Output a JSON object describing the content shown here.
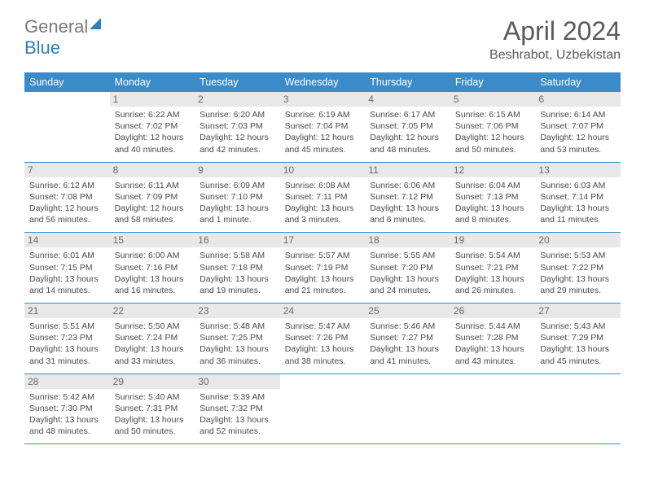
{
  "logo": {
    "text_general": "General",
    "text_blue": "Blue"
  },
  "title": "April 2024",
  "location": "Beshrabot, Uzbekistan",
  "day_headers": [
    "Sunday",
    "Monday",
    "Tuesday",
    "Wednesday",
    "Thursday",
    "Friday",
    "Saturday"
  ],
  "colors": {
    "header_bg": "#3b8bc9",
    "header_text": "#ffffff",
    "cell_num_bg": "#e8e8e8",
    "text": "#4a4a4a",
    "rule": "#3b8bc9",
    "logo_blue": "#2f7fbf"
  },
  "weeks": [
    [
      {
        "day": "",
        "lines": []
      },
      {
        "day": "1",
        "lines": [
          "Sunrise: 6:22 AM",
          "Sunset: 7:02 PM",
          "Daylight: 12 hours",
          "and 40 minutes."
        ]
      },
      {
        "day": "2",
        "lines": [
          "Sunrise: 6:20 AM",
          "Sunset: 7:03 PM",
          "Daylight: 12 hours",
          "and 42 minutes."
        ]
      },
      {
        "day": "3",
        "lines": [
          "Sunrise: 6:19 AM",
          "Sunset: 7:04 PM",
          "Daylight: 12 hours",
          "and 45 minutes."
        ]
      },
      {
        "day": "4",
        "lines": [
          "Sunrise: 6:17 AM",
          "Sunset: 7:05 PM",
          "Daylight: 12 hours",
          "and 48 minutes."
        ]
      },
      {
        "day": "5",
        "lines": [
          "Sunrise: 6:15 AM",
          "Sunset: 7:06 PM",
          "Daylight: 12 hours",
          "and 50 minutes."
        ]
      },
      {
        "day": "6",
        "lines": [
          "Sunrise: 6:14 AM",
          "Sunset: 7:07 PM",
          "Daylight: 12 hours",
          "and 53 minutes."
        ]
      }
    ],
    [
      {
        "day": "7",
        "lines": [
          "Sunrise: 6:12 AM",
          "Sunset: 7:08 PM",
          "Daylight: 12 hours",
          "and 56 minutes."
        ]
      },
      {
        "day": "8",
        "lines": [
          "Sunrise: 6:11 AM",
          "Sunset: 7:09 PM",
          "Daylight: 12 hours",
          "and 58 minutes."
        ]
      },
      {
        "day": "9",
        "lines": [
          "Sunrise: 6:09 AM",
          "Sunset: 7:10 PM",
          "Daylight: 13 hours",
          "and 1 minute."
        ]
      },
      {
        "day": "10",
        "lines": [
          "Sunrise: 6:08 AM",
          "Sunset: 7:11 PM",
          "Daylight: 13 hours",
          "and 3 minutes."
        ]
      },
      {
        "day": "11",
        "lines": [
          "Sunrise: 6:06 AM",
          "Sunset: 7:12 PM",
          "Daylight: 13 hours",
          "and 6 minutes."
        ]
      },
      {
        "day": "12",
        "lines": [
          "Sunrise: 6:04 AM",
          "Sunset: 7:13 PM",
          "Daylight: 13 hours",
          "and 8 minutes."
        ]
      },
      {
        "day": "13",
        "lines": [
          "Sunrise: 6:03 AM",
          "Sunset: 7:14 PM",
          "Daylight: 13 hours",
          "and 11 minutes."
        ]
      }
    ],
    [
      {
        "day": "14",
        "lines": [
          "Sunrise: 6:01 AM",
          "Sunset: 7:15 PM",
          "Daylight: 13 hours",
          "and 14 minutes."
        ]
      },
      {
        "day": "15",
        "lines": [
          "Sunrise: 6:00 AM",
          "Sunset: 7:16 PM",
          "Daylight: 13 hours",
          "and 16 minutes."
        ]
      },
      {
        "day": "16",
        "lines": [
          "Sunrise: 5:58 AM",
          "Sunset: 7:18 PM",
          "Daylight: 13 hours",
          "and 19 minutes."
        ]
      },
      {
        "day": "17",
        "lines": [
          "Sunrise: 5:57 AM",
          "Sunset: 7:19 PM",
          "Daylight: 13 hours",
          "and 21 minutes."
        ]
      },
      {
        "day": "18",
        "lines": [
          "Sunrise: 5:55 AM",
          "Sunset: 7:20 PM",
          "Daylight: 13 hours",
          "and 24 minutes."
        ]
      },
      {
        "day": "19",
        "lines": [
          "Sunrise: 5:54 AM",
          "Sunset: 7:21 PM",
          "Daylight: 13 hours",
          "and 26 minutes."
        ]
      },
      {
        "day": "20",
        "lines": [
          "Sunrise: 5:53 AM",
          "Sunset: 7:22 PM",
          "Daylight: 13 hours",
          "and 29 minutes."
        ]
      }
    ],
    [
      {
        "day": "21",
        "lines": [
          "Sunrise: 5:51 AM",
          "Sunset: 7:23 PM",
          "Daylight: 13 hours",
          "and 31 minutes."
        ]
      },
      {
        "day": "22",
        "lines": [
          "Sunrise: 5:50 AM",
          "Sunset: 7:24 PM",
          "Daylight: 13 hours",
          "and 33 minutes."
        ]
      },
      {
        "day": "23",
        "lines": [
          "Sunrise: 5:48 AM",
          "Sunset: 7:25 PM",
          "Daylight: 13 hours",
          "and 36 minutes."
        ]
      },
      {
        "day": "24",
        "lines": [
          "Sunrise: 5:47 AM",
          "Sunset: 7:26 PM",
          "Daylight: 13 hours",
          "and 38 minutes."
        ]
      },
      {
        "day": "25",
        "lines": [
          "Sunrise: 5:46 AM",
          "Sunset: 7:27 PM",
          "Daylight: 13 hours",
          "and 41 minutes."
        ]
      },
      {
        "day": "26",
        "lines": [
          "Sunrise: 5:44 AM",
          "Sunset: 7:28 PM",
          "Daylight: 13 hours",
          "and 43 minutes."
        ]
      },
      {
        "day": "27",
        "lines": [
          "Sunrise: 5:43 AM",
          "Sunset: 7:29 PM",
          "Daylight: 13 hours",
          "and 45 minutes."
        ]
      }
    ],
    [
      {
        "day": "28",
        "lines": [
          "Sunrise: 5:42 AM",
          "Sunset: 7:30 PM",
          "Daylight: 13 hours",
          "and 48 minutes."
        ]
      },
      {
        "day": "29",
        "lines": [
          "Sunrise: 5:40 AM",
          "Sunset: 7:31 PM",
          "Daylight: 13 hours",
          "and 50 minutes."
        ]
      },
      {
        "day": "30",
        "lines": [
          "Sunrise: 5:39 AM",
          "Sunset: 7:32 PM",
          "Daylight: 13 hours",
          "and 52 minutes."
        ]
      },
      {
        "day": "",
        "lines": []
      },
      {
        "day": "",
        "lines": []
      },
      {
        "day": "",
        "lines": []
      },
      {
        "day": "",
        "lines": []
      }
    ]
  ]
}
